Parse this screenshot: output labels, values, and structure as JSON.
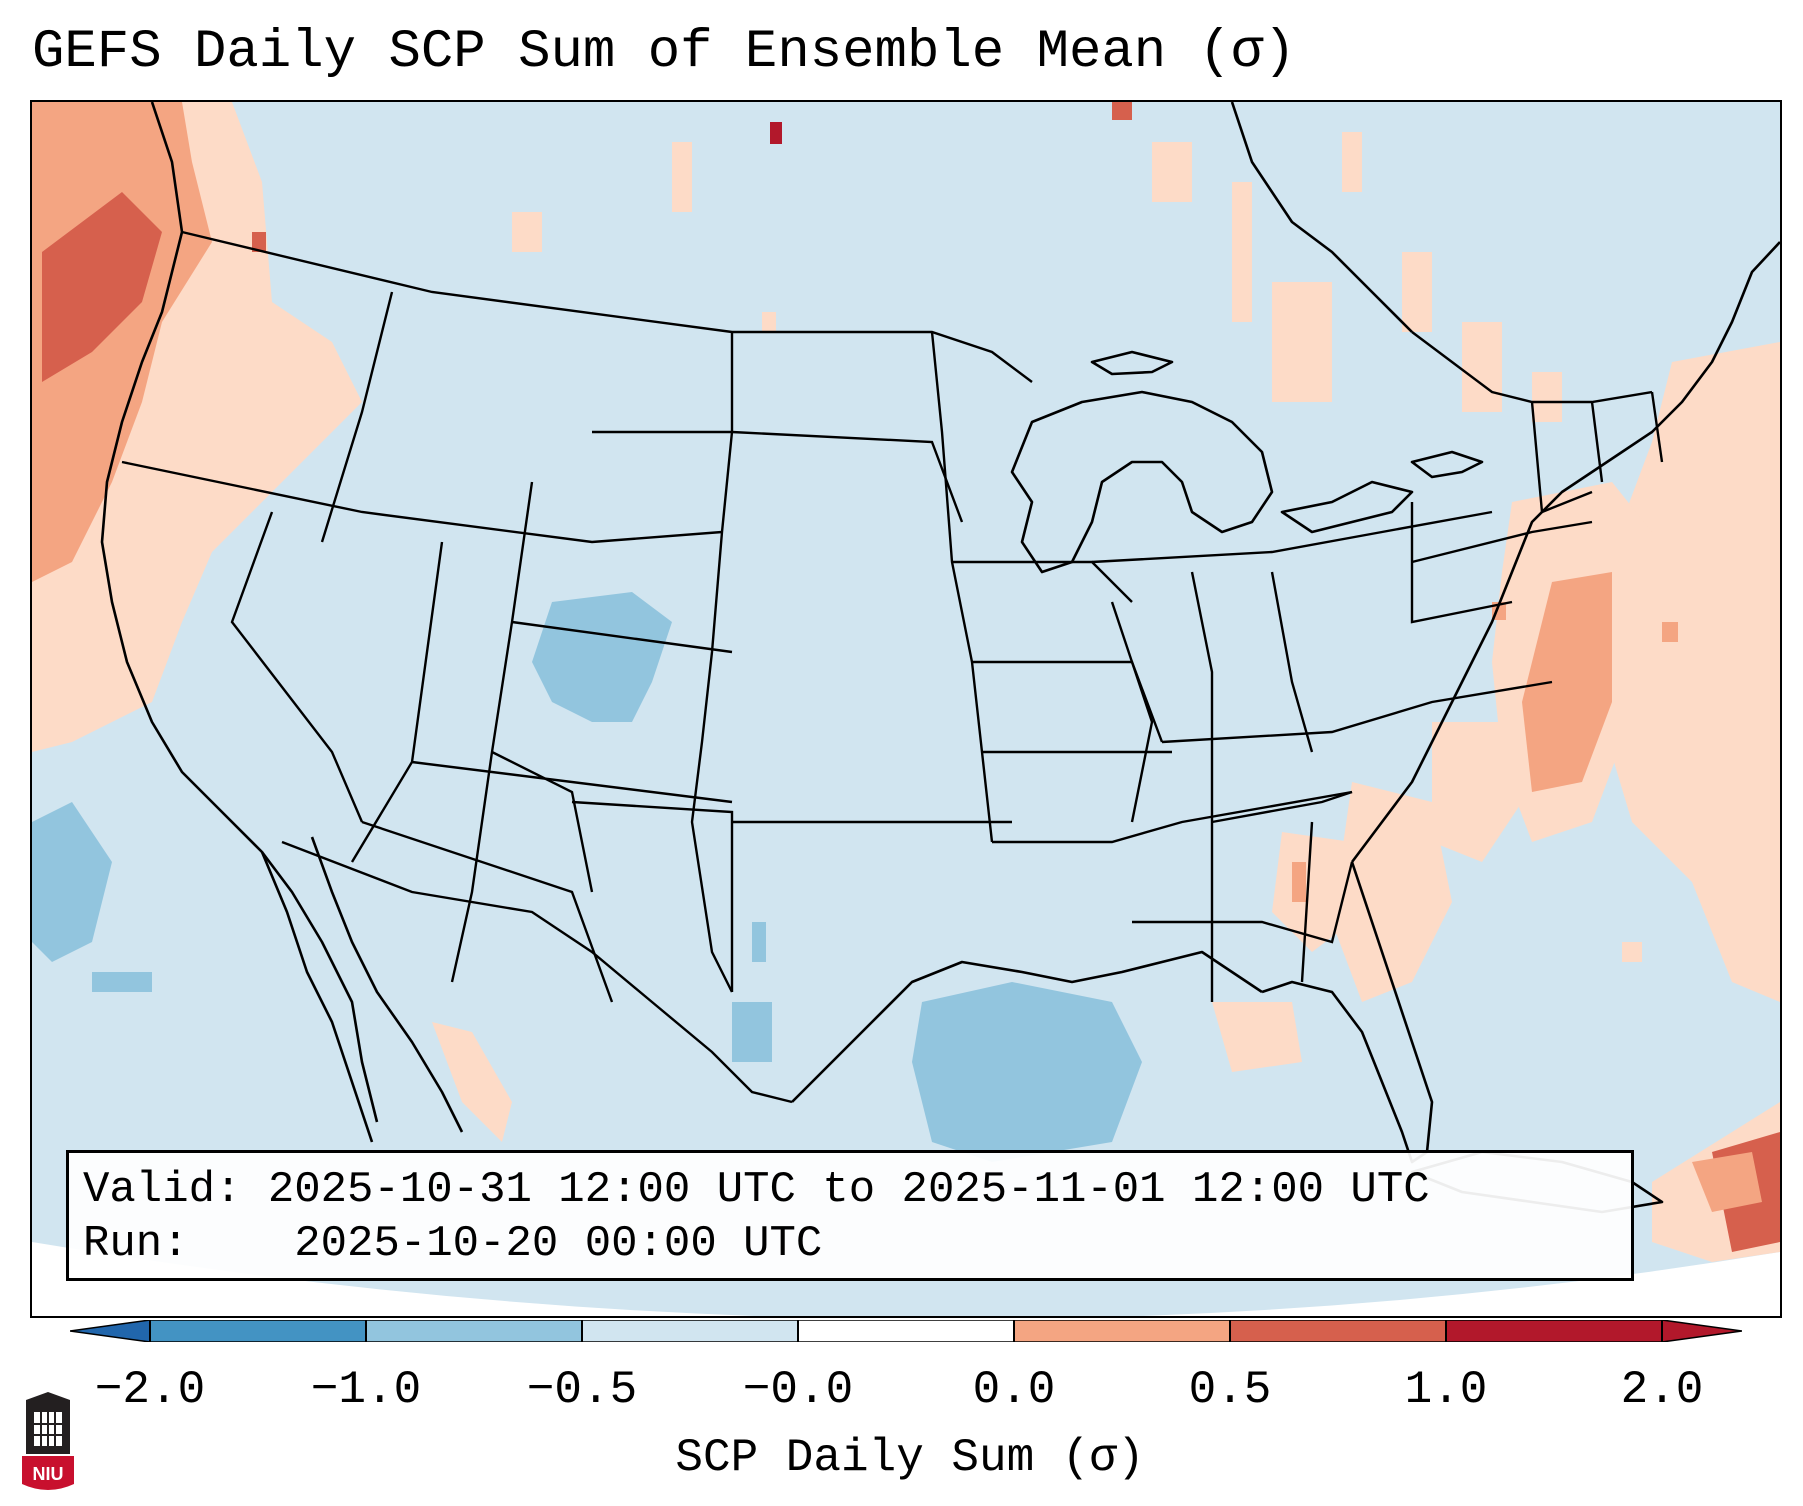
{
  "title": "GEFS Daily SCP Sum of Ensemble Mean (σ)",
  "info": {
    "valid_label": "Valid:",
    "valid_value": "2025-10-31 12:00 UTC to 2025-11-01 12:00 UTC",
    "run_label": "Run:",
    "run_value": "2025-10-20 00:00 UTC"
  },
  "colorbar": {
    "label": "SCP Daily Sum (σ)",
    "ticks": [
      "−2.0",
      "−1.0",
      "−0.5",
      "−0.0",
      "0.0",
      "0.5",
      "1.0",
      "2.0"
    ],
    "colors": [
      "#4393c3",
      "#92c5de",
      "#d1e5f0",
      "#fddbc7",
      "#f4a582",
      "#d6604d",
      "#b2182b"
    ],
    "extend_low_color": "#2166ac",
    "extend_high_color": "#b2182b"
  },
  "map": {
    "background_color": "#d1e5f0",
    "outside_color": "#ffffff",
    "line_color": "#000000"
  },
  "logo": {
    "text": "NIU",
    "color": "#c8102e"
  }
}
